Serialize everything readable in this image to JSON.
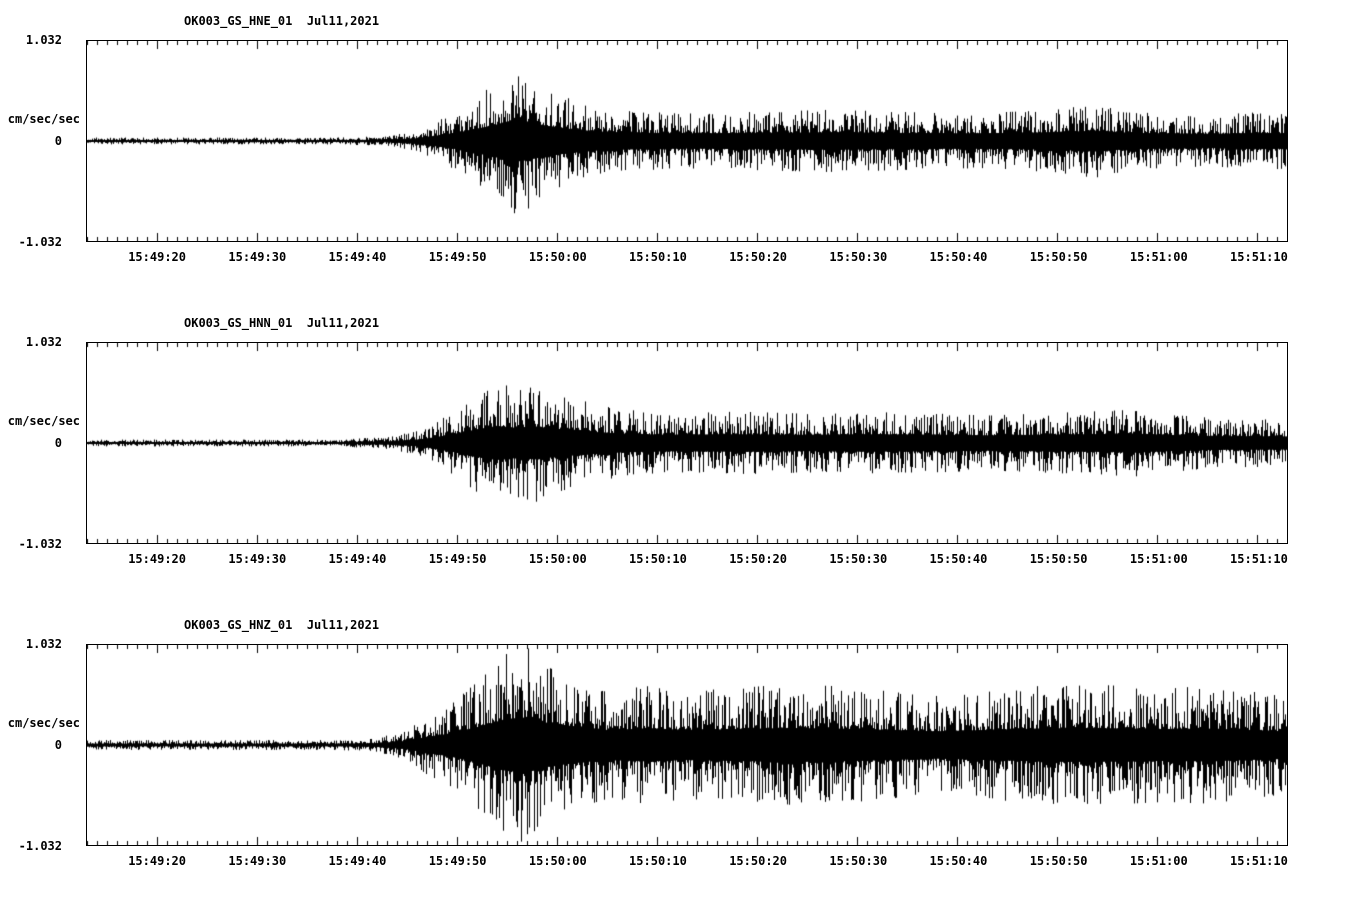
{
  "page": {
    "background": "#ffffff",
    "foreground": "#000000"
  },
  "chart_data": [
    {
      "type": "line",
      "subtype": "seismogram-waveform",
      "title": "OK003_GS_HNE_01  Jul11,2021",
      "channel": "HNE",
      "ylabel": "cm/sec/sec",
      "ylim": [
        -1.032,
        1.032
      ],
      "y_ticks": [
        "1.032",
        "0",
        "-1.032"
      ],
      "x_axis": {
        "span_seconds": 120,
        "minor_tick_s": 1,
        "major_tick_s": 10,
        "first_major_tick_s": 7
      },
      "x_ticks": [
        {
          "t": 7,
          "label": "15:49:20"
        },
        {
          "t": 17,
          "label": "15:49:30"
        },
        {
          "t": 27,
          "label": "15:49:40"
        },
        {
          "t": 37,
          "label": "15:49:50"
        },
        {
          "t": 47,
          "label": "15:50:00"
        },
        {
          "t": 57,
          "label": "15:50:10"
        },
        {
          "t": 67,
          "label": "15:50:20"
        },
        {
          "t": 77,
          "label": "15:50:30"
        },
        {
          "t": 87,
          "label": "15:50:40"
        },
        {
          "t": 97,
          "label": "15:50:50"
        },
        {
          "t": 107,
          "label": "15:51:00"
        },
        {
          "t": 117,
          "label": "15:51:10"
        }
      ],
      "envelope_units": "peak amplitude as fraction of full scale 1.032, vs seconds from left edge",
      "envelope_points": [
        [
          0,
          0.035
        ],
        [
          25,
          0.035
        ],
        [
          30,
          0.05
        ],
        [
          33,
          0.1
        ],
        [
          35,
          0.2
        ],
        [
          37,
          0.3
        ],
        [
          39,
          0.45
        ],
        [
          41,
          0.6
        ],
        [
          42.5,
          0.75
        ],
        [
          44,
          0.7
        ],
        [
          46,
          0.55
        ],
        [
          48,
          0.45
        ],
        [
          51,
          0.35
        ],
        [
          55,
          0.3
        ],
        [
          60,
          0.28
        ],
        [
          68,
          0.3
        ],
        [
          75,
          0.32
        ],
        [
          80,
          0.3
        ],
        [
          88,
          0.28
        ],
        [
          93,
          0.3
        ],
        [
          97,
          0.32
        ],
        [
          101,
          0.38
        ],
        [
          104,
          0.3
        ],
        [
          108,
          0.28
        ],
        [
          113,
          0.26
        ],
        [
          117,
          0.3
        ],
        [
          120,
          0.28
        ]
      ],
      "seed": 101
    },
    {
      "type": "line",
      "subtype": "seismogram-waveform",
      "title": "OK003_GS_HNN_01  Jul11,2021",
      "channel": "HNN",
      "ylabel": "cm/sec/sec",
      "ylim": [
        -1.032,
        1.032
      ],
      "y_ticks": [
        "1.032",
        "0",
        "-1.032"
      ],
      "x_axis": {
        "span_seconds": 120,
        "minor_tick_s": 1,
        "major_tick_s": 10,
        "first_major_tick_s": 7
      },
      "x_ticks": [
        {
          "t": 7,
          "label": "15:49:20"
        },
        {
          "t": 17,
          "label": "15:49:30"
        },
        {
          "t": 27,
          "label": "15:49:40"
        },
        {
          "t": 37,
          "label": "15:49:50"
        },
        {
          "t": 47,
          "label": "15:50:00"
        },
        {
          "t": 57,
          "label": "15:50:10"
        },
        {
          "t": 67,
          "label": "15:50:20"
        },
        {
          "t": 77,
          "label": "15:50:30"
        },
        {
          "t": 87,
          "label": "15:50:40"
        },
        {
          "t": 97,
          "label": "15:50:50"
        },
        {
          "t": 107,
          "label": "15:51:00"
        },
        {
          "t": 117,
          "label": "15:51:10"
        }
      ],
      "envelope_units": "peak amplitude as fraction of full scale 1.032, vs seconds from left edge",
      "envelope_points": [
        [
          0,
          0.035
        ],
        [
          25,
          0.035
        ],
        [
          30,
          0.06
        ],
        [
          33,
          0.12
        ],
        [
          35,
          0.22
        ],
        [
          37,
          0.35
        ],
        [
          39,
          0.5
        ],
        [
          41,
          0.62
        ],
        [
          43,
          0.55
        ],
        [
          45,
          0.6
        ],
        [
          47,
          0.5
        ],
        [
          50,
          0.42
        ],
        [
          53,
          0.35
        ],
        [
          58,
          0.3
        ],
        [
          65,
          0.32
        ],
        [
          72,
          0.3
        ],
        [
          78,
          0.32
        ],
        [
          85,
          0.3
        ],
        [
          90,
          0.28
        ],
        [
          95,
          0.3
        ],
        [
          100,
          0.32
        ],
        [
          105,
          0.34
        ],
        [
          108,
          0.3
        ],
        [
          113,
          0.25
        ],
        [
          120,
          0.24
        ]
      ],
      "seed": 202
    },
    {
      "type": "line",
      "subtype": "seismogram-waveform",
      "title": "OK003_GS_HNZ_01  Jul11,2021",
      "channel": "HNZ",
      "ylabel": "cm/sec/sec",
      "ylim": [
        -1.032,
        1.032
      ],
      "y_ticks": [
        "1.032",
        "0",
        "-1.032"
      ],
      "x_axis": {
        "span_seconds": 120,
        "minor_tick_s": 1,
        "major_tick_s": 10,
        "first_major_tick_s": 7
      },
      "x_ticks": [
        {
          "t": 7,
          "label": "15:49:20"
        },
        {
          "t": 17,
          "label": "15:49:30"
        },
        {
          "t": 27,
          "label": "15:49:40"
        },
        {
          "t": 37,
          "label": "15:49:50"
        },
        {
          "t": 47,
          "label": "15:50:00"
        },
        {
          "t": 57,
          "label": "15:50:10"
        },
        {
          "t": 67,
          "label": "15:50:20"
        },
        {
          "t": 77,
          "label": "15:50:30"
        },
        {
          "t": 87,
          "label": "15:50:40"
        },
        {
          "t": 97,
          "label": "15:50:50"
        },
        {
          "t": 107,
          "label": "15:51:00"
        },
        {
          "t": 117,
          "label": "15:51:10"
        }
      ],
      "envelope_units": "peak amplitude as fraction of full scale 1.032, vs seconds from left edge",
      "envelope_points": [
        [
          0,
          0.05
        ],
        [
          25,
          0.05
        ],
        [
          29,
          0.07
        ],
        [
          32,
          0.15
        ],
        [
          34,
          0.3
        ],
        [
          36,
          0.4
        ],
        [
          38,
          0.55
        ],
        [
          40,
          0.75
        ],
        [
          42,
          0.95
        ],
        [
          44,
          1.0
        ],
        [
          46,
          0.8
        ],
        [
          49,
          0.65
        ],
        [
          52,
          0.55
        ],
        [
          56,
          0.6
        ],
        [
          60,
          0.55
        ],
        [
          65,
          0.58
        ],
        [
          70,
          0.62
        ],
        [
          75,
          0.6
        ],
        [
          80,
          0.55
        ],
        [
          85,
          0.5
        ],
        [
          90,
          0.55
        ],
        [
          95,
          0.6
        ],
        [
          100,
          0.62
        ],
        [
          104,
          0.6
        ],
        [
          108,
          0.58
        ],
        [
          112,
          0.6
        ],
        [
          116,
          0.55
        ],
        [
          120,
          0.5
        ]
      ],
      "seed": 303
    }
  ]
}
